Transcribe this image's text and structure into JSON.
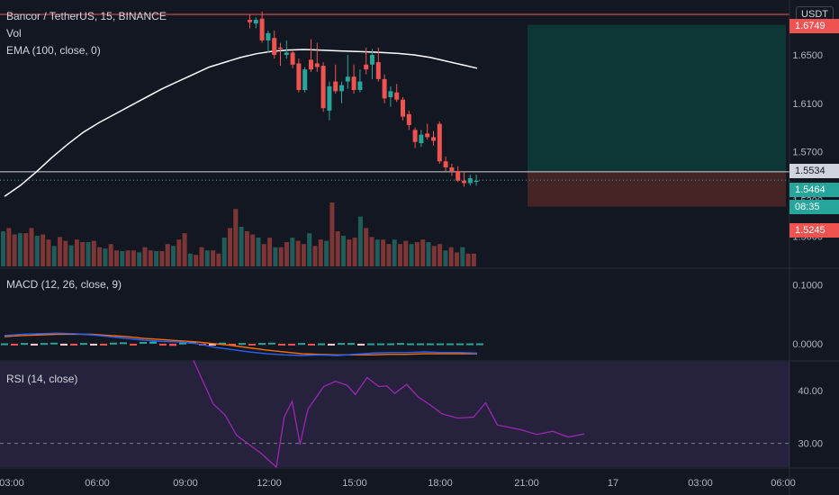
{
  "header": {
    "symbol_line": "Bancor / TetherUS, 15, BINANCE",
    "vol_label": "Vol",
    "ema_label": "EMA (100, close, 0)",
    "currency": "USDT"
  },
  "price_tags": {
    "last": "1.5534",
    "current": "1.5464",
    "countdown": "08:35",
    "stop": "1.5245",
    "top": "1.6749"
  },
  "macd_label": "MACD (12, 26, close, 9)",
  "rsi_label": "RSI (14, close)",
  "colors": {
    "background": "#131722",
    "up": "#26a69a",
    "down": "#ef5350",
    "ema": "#ffffff",
    "macd": "#2962ff",
    "signal": "#ff6d00",
    "rsi": "#9c27b0",
    "target_zone": "#0f3a3a",
    "stop_zone": "#4a2626"
  },
  "chart_data": [
    {
      "type": "candlestick",
      "title": "Bancor / TetherUS, 15, BINANCE",
      "ylim": [
        1.49,
        1.6865
      ],
      "y_ticks": [
        "1.6500",
        "1.6100",
        "1.5700",
        "1.5300",
        "1.5000"
      ],
      "x_ticks": [
        "03:00",
        "06:00",
        "09:00",
        "12:00",
        "15:00",
        "18:00",
        "21:00",
        "17",
        "03:00",
        "06:00"
      ],
      "candles": [
        [
          1.679,
          1.684,
          1.672,
          1.677
        ],
        [
          1.676,
          1.681,
          1.672,
          1.679
        ],
        [
          1.68,
          1.686,
          1.66,
          1.662
        ],
        [
          1.662,
          1.67,
          1.652,
          1.668
        ],
        [
          1.664,
          1.67,
          1.647,
          1.65
        ],
        [
          1.656,
          1.66,
          1.641,
          1.655
        ],
        [
          1.65,
          1.662,
          1.647,
          1.652
        ],
        [
          1.652,
          1.654,
          1.639,
          1.642
        ],
        [
          1.643,
          1.647,
          1.619,
          1.621
        ],
        [
          1.621,
          1.64,
          1.619,
          1.638
        ],
        [
          1.646,
          1.663,
          1.636,
          1.638
        ],
        [
          1.643,
          1.66,
          1.636,
          1.64
        ],
        [
          1.641,
          1.644,
          1.603,
          1.606
        ],
        [
          1.604,
          1.628,
          1.596,
          1.624
        ],
        [
          1.628,
          1.642,
          1.618,
          1.62
        ],
        [
          1.62,
          1.628,
          1.61,
          1.625
        ],
        [
          1.628,
          1.65,
          1.622,
          1.632
        ],
        [
          1.632,
          1.642,
          1.618,
          1.621
        ],
        [
          1.621,
          1.638,
          1.619,
          1.628
        ],
        [
          1.642,
          1.656,
          1.634,
          1.638
        ],
        [
          1.642,
          1.655,
          1.63,
          1.65
        ],
        [
          1.644,
          1.656,
          1.628,
          1.63
        ],
        [
          1.63,
          1.634,
          1.61,
          1.614
        ],
        [
          1.615,
          1.624,
          1.607,
          1.62
        ],
        [
          1.619,
          1.626,
          1.611,
          1.613
        ],
        [
          1.613,
          1.615,
          1.596,
          1.599
        ],
        [
          1.601,
          1.604,
          1.588,
          1.592
        ],
        [
          1.588,
          1.59,
          1.573,
          1.578
        ],
        [
          1.577,
          1.588,
          1.574,
          1.584
        ],
        [
          1.585,
          1.593,
          1.58,
          1.582
        ],
        [
          1.582,
          1.587,
          1.575,
          1.579
        ],
        [
          1.593,
          1.595,
          1.56,
          1.562
        ],
        [
          1.562,
          1.566,
          1.554,
          1.557
        ],
        [
          1.557,
          1.56,
          1.55,
          1.554
        ],
        [
          1.554,
          1.558,
          1.545,
          1.546
        ],
        [
          1.546,
          1.554,
          1.541,
          1.544
        ],
        [
          1.544,
          1.551,
          1.542,
          1.548
        ],
        [
          1.545,
          1.551,
          1.542,
          1.546
        ]
      ],
      "ema_100": [
        1.533,
        1.542,
        1.553,
        1.565,
        1.576,
        1.586,
        1.594,
        1.601,
        1.608,
        1.615,
        1.622,
        1.628,
        1.634,
        1.64,
        1.644,
        1.648,
        1.651,
        1.653,
        1.654,
        1.6545,
        1.654,
        1.6535,
        1.653,
        1.6525,
        1.652,
        1.6512,
        1.65,
        1.648,
        1.645,
        1.642,
        1.639
      ],
      "volume": [
        0.55,
        0.6,
        0.5,
        0.52,
        0.52,
        0.6,
        0.48,
        0.5,
        0.42,
        0.32,
        0.46,
        0.4,
        0.33,
        0.42,
        0.38,
        0.38,
        0.4,
        0.3,
        0.28,
        0.35,
        0.25,
        0.24,
        0.25,
        0.25,
        0.22,
        0.3,
        0.25,
        0.24,
        0.24,
        0.35,
        0.32,
        0.42,
        0.52,
        0.2,
        0.18,
        0.3,
        0.25,
        0.25,
        0.2,
        0.45,
        0.6,
        0.9,
        0.62,
        0.55,
        0.5,
        0.45,
        0.35,
        0.45,
        0.3,
        0.3,
        0.38,
        0.45,
        0.4,
        0.35,
        0.52,
        0.32,
        0.42,
        0.4,
        1.0,
        0.55,
        0.48,
        0.42,
        0.45,
        0.78,
        0.6,
        0.46,
        0.42,
        0.42,
        0.35,
        0.42,
        0.35,
        0.4,
        0.35,
        0.38,
        0.42,
        0.38,
        0.32,
        0.35,
        0.25,
        0.3,
        0.22,
        0.3,
        0.2,
        0.2
      ],
      "trade_zone": {
        "target": 1.6749,
        "entry": 1.5534,
        "stop": 1.5245
      }
    },
    {
      "type": "line",
      "title": "MACD (12, 26, close, 9)",
      "y_ticks": [
        "0.1000",
        "0.0000"
      ],
      "ylim": [
        -0.02,
        0.11
      ],
      "macd": [
        0.014,
        0.016,
        0.017,
        0.018,
        0.017,
        0.015,
        0.012,
        0.009,
        0.006,
        0.004,
        0.003,
        0.0,
        -0.006,
        -0.01,
        -0.014,
        -0.017,
        -0.019,
        -0.02,
        -0.019,
        -0.02,
        -0.018,
        -0.016,
        -0.015,
        -0.015,
        -0.014,
        -0.015,
        -0.015,
        -0.016
      ],
      "signal": [
        0.012,
        0.014,
        0.015,
        0.016,
        0.016,
        0.016,
        0.014,
        0.012,
        0.009,
        0.007,
        0.005,
        0.003,
        0.0,
        -0.003,
        -0.007,
        -0.011,
        -0.014,
        -0.017,
        -0.018,
        -0.019,
        -0.019,
        -0.019,
        -0.018,
        -0.018,
        -0.017,
        -0.017,
        -0.017,
        -0.017
      ],
      "histogram": [
        0.001,
        -0.002,
        0.002,
        -0.003,
        0.002,
        0.003,
        -0.004,
        -0.003,
        0.002,
        -0.005,
        -0.004,
        0.003,
        0.004,
        -0.005,
        0.005,
        0.006,
        -0.004,
        -0.006,
        0.003,
        0.005,
        -0.004,
        -0.004,
        0.003,
        -0.002,
        0.002,
        -0.003,
        0.002,
        0.003,
        -0.004,
        -0.002,
        0.002,
        -0.002,
        0.001,
        -0.002,
        0.002,
        0.002,
        -0.001,
        0.001,
        0.001,
        0.001,
        0.002,
        0.001,
        0.001,
        0.001,
        0.001,
        0.001,
        0.001,
        0.001,
        0.001
      ]
    },
    {
      "type": "line",
      "title": "RSI (14, close)",
      "y_ticks": [
        "40.00",
        "30.00"
      ],
      "ylim": [
        25.5,
        45.5
      ],
      "rsi": [
        [
          0.245,
          45.8
        ],
        [
          0.27,
          37.5
        ],
        [
          0.285,
          35.4
        ],
        [
          0.3,
          31.5
        ],
        [
          0.33,
          28.2
        ],
        [
          0.35,
          25.5
        ],
        [
          0.36,
          35.0
        ],
        [
          0.37,
          38.0
        ],
        [
          0.38,
          29.8
        ],
        [
          0.39,
          36.5
        ],
        [
          0.41,
          40.8
        ],
        [
          0.425,
          41.8
        ],
        [
          0.44,
          41.0
        ],
        [
          0.45,
          39.3
        ],
        [
          0.465,
          42.5
        ],
        [
          0.48,
          40.8
        ],
        [
          0.49,
          40.9
        ],
        [
          0.5,
          39.5
        ],
        [
          0.515,
          41.2
        ],
        [
          0.53,
          38.8
        ],
        [
          0.545,
          37.3
        ],
        [
          0.56,
          35.6
        ],
        [
          0.58,
          34.8
        ],
        [
          0.6,
          35.0
        ],
        [
          0.615,
          37.7
        ],
        [
          0.63,
          33.5
        ],
        [
          0.66,
          32.6
        ],
        [
          0.68,
          31.7
        ],
        [
          0.7,
          32.3
        ],
        [
          0.72,
          31.2
        ],
        [
          0.74,
          31.8
        ]
      ]
    }
  ]
}
